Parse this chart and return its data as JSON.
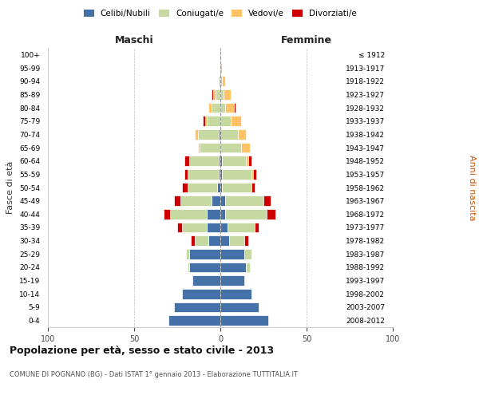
{
  "age_groups": [
    "100+",
    "95-99",
    "90-94",
    "85-89",
    "80-84",
    "75-79",
    "70-74",
    "65-69",
    "60-64",
    "55-59",
    "50-54",
    "45-49",
    "40-44",
    "35-39",
    "30-34",
    "25-29",
    "20-24",
    "15-19",
    "10-14",
    "5-9",
    "0-4"
  ],
  "birth_years": [
    "≤ 1912",
    "1913-1917",
    "1918-1922",
    "1923-1927",
    "1928-1932",
    "1933-1937",
    "1938-1942",
    "1943-1947",
    "1948-1952",
    "1953-1957",
    "1958-1962",
    "1963-1967",
    "1968-1972",
    "1973-1977",
    "1978-1982",
    "1983-1987",
    "1988-1992",
    "1993-1997",
    "1998-2002",
    "2003-2007",
    "2008-2012"
  ],
  "male": {
    "celibi": [
      0,
      0,
      0,
      0,
      0,
      0,
      1,
      0,
      1,
      1,
      2,
      5,
      8,
      8,
      7,
      18,
      18,
      16,
      22,
      27,
      30
    ],
    "coniugati": [
      0,
      0,
      1,
      3,
      5,
      8,
      12,
      12,
      17,
      18,
      17,
      18,
      21,
      14,
      8,
      2,
      1,
      0,
      0,
      0,
      0
    ],
    "vedovi": [
      0,
      0,
      0,
      1,
      2,
      1,
      2,
      1,
      0,
      0,
      0,
      0,
      0,
      0,
      0,
      0,
      0,
      0,
      0,
      0,
      0
    ],
    "divorziati": [
      0,
      0,
      0,
      1,
      0,
      1,
      0,
      0,
      3,
      2,
      3,
      4,
      4,
      3,
      2,
      0,
      0,
      0,
      0,
      0,
      0
    ]
  },
  "female": {
    "nubili": [
      0,
      0,
      0,
      0,
      0,
      0,
      0,
      0,
      1,
      1,
      1,
      3,
      3,
      4,
      5,
      14,
      15,
      14,
      18,
      22,
      28
    ],
    "coniugate": [
      0,
      0,
      1,
      2,
      3,
      6,
      10,
      12,
      14,
      17,
      17,
      22,
      24,
      16,
      9,
      4,
      2,
      0,
      0,
      0,
      0
    ],
    "vedove": [
      0,
      1,
      2,
      4,
      5,
      6,
      5,
      5,
      1,
      1,
      0,
      0,
      0,
      0,
      0,
      0,
      0,
      0,
      0,
      0,
      0
    ],
    "divorziate": [
      0,
      0,
      0,
      0,
      1,
      0,
      0,
      0,
      2,
      2,
      2,
      4,
      5,
      2,
      2,
      0,
      0,
      0,
      0,
      0,
      0
    ]
  },
  "colors": {
    "celibi": "#4472a8",
    "coniugati": "#c5d9a0",
    "vedovi": "#ffc264",
    "divorziati": "#cc0000"
  },
  "xlim": 100,
  "title": "Popolazione per età, sesso e stato civile - 2013",
  "subtitle": "COMUNE DI POGNANO (BG) - Dati ISTAT 1° gennaio 2013 - Elaborazione TUTTITALIA.IT",
  "ylabel_left": "Fasce di età",
  "ylabel_right": "Anni di nascita"
}
